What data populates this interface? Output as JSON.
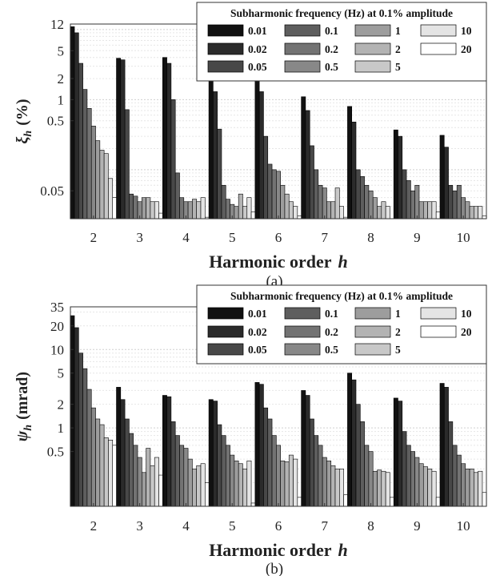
{
  "chart_data": [
    {
      "type": "bar",
      "panel_caption": "(a)",
      "xlabel": "Harmonic order",
      "xlabel_symbol": "h",
      "ylabel_symbol": "ξ",
      "ylabel_subscript": "h",
      "ylabel_unit": "(%)",
      "yscale": "log",
      "ylim": [
        0.02,
        12
      ],
      "yticks": [
        0.05,
        0.5,
        1,
        2,
        5,
        12
      ],
      "ytick_labels": [
        "0.05",
        "0.5",
        "1",
        "2",
        "5",
        "12"
      ],
      "grid": true,
      "categories": [
        "2",
        "3",
        "4",
        "5",
        "6",
        "7",
        "8",
        "9",
        "10"
      ],
      "legend": {
        "title": "Subharmonic frequency (Hz) at 0.1% amplitude",
        "placement": "top-right",
        "columns": [
          [
            "0.01",
            "0.02",
            "0.05"
          ],
          [
            "0.1",
            "0.2",
            "0.5"
          ],
          [
            "1",
            "2",
            "5"
          ],
          [
            "10",
            "20"
          ]
        ]
      },
      "series": [
        {
          "name": "0.01",
          "color": "#111111",
          "values": [
            11,
            3.9,
            4.0,
            2.0,
            2.0,
            1.1,
            0.8,
            0.37,
            0.31
          ]
        },
        {
          "name": "0.02",
          "color": "#2b2b2b",
          "values": [
            9.0,
            3.7,
            3.3,
            1.3,
            1.3,
            0.7,
            0.48,
            0.3,
            0.21
          ]
        },
        {
          "name": "0.05",
          "color": "#484848",
          "values": [
            3.3,
            0.72,
            1.0,
            0.38,
            0.3,
            0.22,
            0.1,
            0.1,
            0.06
          ]
        },
        {
          "name": "0.1",
          "color": "#5e5e5e",
          "values": [
            1.4,
            0.045,
            0.09,
            0.06,
            0.12,
            0.1,
            0.08,
            0.07,
            0.05
          ]
        },
        {
          "name": "0.2",
          "color": "#737373",
          "values": [
            0.75,
            0.042,
            0.04,
            0.038,
            0.1,
            0.06,
            0.06,
            0.05,
            0.06
          ]
        },
        {
          "name": "0.5",
          "color": "#888888",
          "values": [
            0.42,
            0.035,
            0.035,
            0.032,
            0.095,
            0.055,
            0.05,
            0.06,
            0.04
          ]
        },
        {
          "name": "1",
          "color": "#9d9d9d",
          "values": [
            0.26,
            0.04,
            0.035,
            0.03,
            0.06,
            0.035,
            0.04,
            0.035,
            0.035
          ]
        },
        {
          "name": "2",
          "color": "#b3b3b3",
          "values": [
            0.19,
            0.04,
            0.038,
            0.045,
            0.045,
            0.035,
            0.03,
            0.035,
            0.03
          ]
        },
        {
          "name": "5",
          "color": "#c8c8c8",
          "values": [
            0.17,
            0.035,
            0.035,
            0.03,
            0.035,
            0.055,
            0.035,
            0.035,
            0.03
          ]
        },
        {
          "name": "10",
          "color": "#e4e4e4",
          "values": [
            0.075,
            0.035,
            0.04,
            0.04,
            0.03,
            0.03,
            0.03,
            0.035,
            0.03
          ]
        },
        {
          "name": "20",
          "color": "#ffffff",
          "values": [
            0.04,
            0.024,
            0.021,
            0.025,
            0.022,
            0.021,
            0.02,
            0.025,
            0.022
          ]
        }
      ]
    },
    {
      "type": "bar",
      "panel_caption": "(b)",
      "xlabel": "Harmonic order",
      "xlabel_symbol": "h",
      "ylabel_symbol": "ψ",
      "ylabel_subscript": "h",
      "ylabel_unit": "(mrad)",
      "yscale": "log",
      "ylim": [
        0.1,
        35
      ],
      "yticks": [
        0.5,
        1,
        2,
        5,
        10,
        20,
        35
      ],
      "ytick_labels": [
        "0.5",
        "1",
        "2",
        "5",
        "10",
        "20",
        "35"
      ],
      "grid": true,
      "categories": [
        "2",
        "3",
        "4",
        "5",
        "6",
        "7",
        "8",
        "9",
        "10"
      ],
      "legend": {
        "title": "Subharmonic frequency (Hz) at 0.1% amplitude",
        "placement": "top-right",
        "columns": [
          [
            "0.01",
            "0.02",
            "0.05"
          ],
          [
            "0.1",
            "0.2",
            "0.5"
          ],
          [
            "1",
            "2",
            "5"
          ],
          [
            "10",
            "20"
          ]
        ]
      },
      "series": [
        {
          "name": "0.01",
          "color": "#111111",
          "values": [
            27,
            3.3,
            2.6,
            2.3,
            3.8,
            3.0,
            5.0,
            2.4,
            3.7
          ]
        },
        {
          "name": "0.02",
          "color": "#2b2b2b",
          "values": [
            19,
            2.3,
            2.5,
            2.2,
            3.6,
            2.6,
            4.1,
            2.2,
            3.3
          ]
        },
        {
          "name": "0.05",
          "color": "#484848",
          "values": [
            9,
            1.3,
            1.2,
            1.1,
            1.8,
            1.3,
            2.0,
            0.9,
            1.2
          ]
        },
        {
          "name": "0.1",
          "color": "#5e5e5e",
          "values": [
            5.7,
            0.85,
            0.8,
            0.8,
            1.3,
            0.8,
            1.2,
            0.6,
            0.6
          ]
        },
        {
          "name": "0.2",
          "color": "#737373",
          "values": [
            3.1,
            0.6,
            0.6,
            0.6,
            0.8,
            0.6,
            0.6,
            0.5,
            0.45
          ]
        },
        {
          "name": "0.5",
          "color": "#888888",
          "values": [
            1.8,
            0.42,
            0.55,
            0.45,
            0.6,
            0.42,
            0.5,
            0.42,
            0.35
          ]
        },
        {
          "name": "1",
          "color": "#9d9d9d",
          "values": [
            1.3,
            0.27,
            0.4,
            0.38,
            0.38,
            0.38,
            0.28,
            0.35,
            0.3
          ]
        },
        {
          "name": "2",
          "color": "#b3b3b3",
          "values": [
            1.1,
            0.55,
            0.3,
            0.35,
            0.37,
            0.33,
            0.29,
            0.32,
            0.3
          ]
        },
        {
          "name": "5",
          "color": "#c8c8c8",
          "values": [
            0.75,
            0.33,
            0.33,
            0.3,
            0.45,
            0.3,
            0.28,
            0.3,
            0.27
          ]
        },
        {
          "name": "10",
          "color": "#e4e4e4",
          "values": [
            0.7,
            0.42,
            0.35,
            0.38,
            0.4,
            0.3,
            0.27,
            0.28,
            0.28
          ]
        },
        {
          "name": "20",
          "color": "#ffffff",
          "values": [
            0.6,
            0.25,
            0.2,
            0.11,
            0.13,
            0.14,
            0.13,
            0.13,
            0.15
          ]
        }
      ]
    }
  ]
}
